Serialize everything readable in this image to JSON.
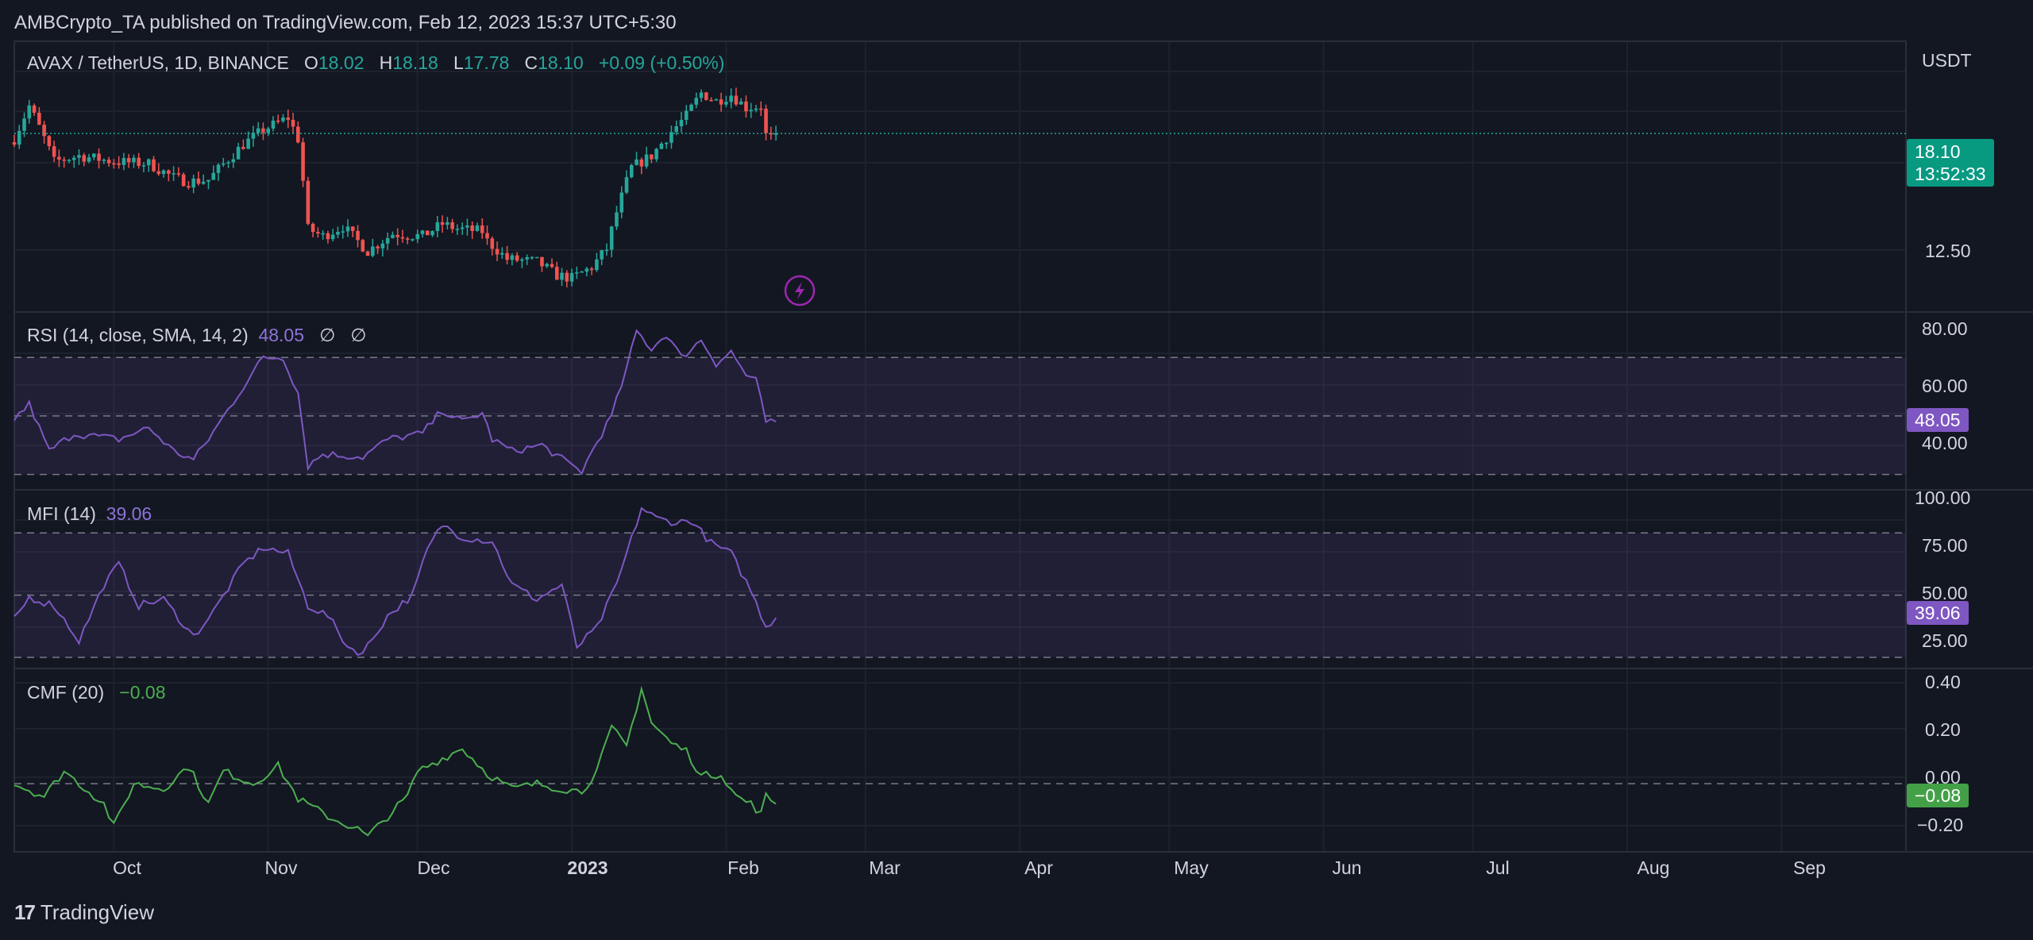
{
  "header": {
    "publisher": "AMBCrypto_TA published on TradingView.com, Feb 12, 2023 15:37 UTC+5:30"
  },
  "price_pane": {
    "symbol": "AVAX / TetherUS, 1D, BINANCE",
    "o_label": "O",
    "o": "18.02",
    "h_label": "H",
    "h": "18.18",
    "l_label": "L",
    "l": "17.78",
    "c_label": "C",
    "c": "18.10",
    "change": "+0.09 (+0.50%)",
    "currency": "USDT",
    "last_price": "18.10",
    "countdown": "13:52:33",
    "axis_tick": "12.50"
  },
  "rsi_pane": {
    "title": "RSI (14, close, SMA, 14, 2)",
    "value": "48.05",
    "icons": [
      "∅",
      "∅"
    ],
    "ticks": [
      "80.00",
      "60.00",
      "40.00"
    ],
    "badge": "48.05"
  },
  "mfi_pane": {
    "title": "MFI (14)",
    "value": "39.06",
    "ticks": [
      "100.00",
      "75.00",
      "50.00",
      "25.00"
    ],
    "badge": "39.06"
  },
  "cmf_pane": {
    "title": "CMF (20)",
    "value": "−0.08",
    "ticks": [
      "0.40",
      "0.20",
      "0.00",
      "−0.20"
    ],
    "badge": "−0.08"
  },
  "x_axis": {
    "labels": [
      "Oct",
      "Nov",
      "Dec",
      "2023",
      "Feb",
      "Mar",
      "Apr",
      "May",
      "Jun",
      "Jul",
      "Aug",
      "Sep"
    ]
  },
  "footer": {
    "brand": "TradingView",
    "logo": "17"
  },
  "colors": {
    "background": "#131722",
    "up": "#26a69a",
    "down": "#ef5350",
    "rsi": "#7e57c2",
    "cmf": "#4caf50",
    "badge_price": "#089981"
  },
  "chart_data": [
    {
      "type": "candlestick",
      "title": "AVAX / TetherUS, 1D, BINANCE",
      "x_range": [
        "2022-09-11",
        "2023-09-26"
      ],
      "ylim": [
        10.48,
        24.03
      ],
      "y_scale": "log",
      "last_close": 18.1,
      "close_anchors": [
        {
          "date": "2022-09-11",
          "close": 17.8
        },
        {
          "date": "2022-09-14",
          "close": 19.7
        },
        {
          "date": "2022-09-19",
          "close": 16.6
        },
        {
          "date": "2022-09-24",
          "close": 16.9
        },
        {
          "date": "2022-10-01",
          "close": 16.6
        },
        {
          "date": "2022-10-08",
          "close": 16.5
        },
        {
          "date": "2022-10-13",
          "close": 15.8
        },
        {
          "date": "2022-10-16",
          "close": 15.6
        },
        {
          "date": "2022-10-20",
          "close": 15.7
        },
        {
          "date": "2022-10-27",
          "close": 17.5
        },
        {
          "date": "2022-10-31",
          "close": 18.3
        },
        {
          "date": "2022-11-05",
          "close": 19.0
        },
        {
          "date": "2022-11-07",
          "close": 17.8
        },
        {
          "date": "2022-11-09",
          "close": 13.5
        },
        {
          "date": "2022-11-12",
          "close": 13.2
        },
        {
          "date": "2022-11-16",
          "close": 13.6
        },
        {
          "date": "2022-11-21",
          "close": 12.6
        },
        {
          "date": "2022-11-26",
          "close": 13.3
        },
        {
          "date": "2022-12-02",
          "close": 13.2
        },
        {
          "date": "2022-12-06",
          "close": 13.7
        },
        {
          "date": "2022-12-09",
          "close": 13.5
        },
        {
          "date": "2022-12-14",
          "close": 13.4
        },
        {
          "date": "2022-12-15",
          "close": 13.0
        },
        {
          "date": "2022-12-19",
          "close": 12.3
        },
        {
          "date": "2022-12-25",
          "close": 12.2
        },
        {
          "date": "2022-12-29",
          "close": 11.7
        },
        {
          "date": "2023-01-01",
          "close": 11.6
        },
        {
          "date": "2023-01-05",
          "close": 12.0
        },
        {
          "date": "2023-01-08",
          "close": 12.7
        },
        {
          "date": "2023-01-10",
          "close": 14.2
        },
        {
          "date": "2023-01-13",
          "close": 16.3
        },
        {
          "date": "2023-01-17",
          "close": 16.9
        },
        {
          "date": "2023-01-21",
          "close": 18.2
        },
        {
          "date": "2023-01-24",
          "close": 19.1
        },
        {
          "date": "2023-01-27",
          "close": 20.5
        },
        {
          "date": "2023-01-30",
          "close": 20.0
        },
        {
          "date": "2023-02-02",
          "close": 20.4
        },
        {
          "date": "2023-02-05",
          "close": 19.6
        },
        {
          "date": "2023-02-08",
          "close": 19.7
        },
        {
          "date": "2023-02-09",
          "close": 18.0
        },
        {
          "date": "2023-02-10",
          "close": 17.9
        },
        {
          "date": "2023-02-11",
          "close": 18.1
        }
      ]
    },
    {
      "type": "line",
      "title": "RSI (14, close, SMA, 14, 2)",
      "ylim": [
        25,
        85
      ],
      "bands": {
        "upper": 70,
        "middle": 50,
        "lower": 30
      },
      "last": 48.05,
      "anchors": [
        {
          "date": "2022-09-11",
          "value": 49
        },
        {
          "date": "2022-09-14",
          "value": 54
        },
        {
          "date": "2022-09-18",
          "value": 38
        },
        {
          "date": "2022-09-23",
          "value": 44
        },
        {
          "date": "2022-10-02",
          "value": 42
        },
        {
          "date": "2022-10-08",
          "value": 46
        },
        {
          "date": "2022-10-13",
          "value": 38
        },
        {
          "date": "2022-10-17",
          "value": 35
        },
        {
          "date": "2022-10-20",
          "value": 42
        },
        {
          "date": "2022-10-27",
          "value": 60
        },
        {
          "date": "2022-10-31",
          "value": 70
        },
        {
          "date": "2022-11-04",
          "value": 70
        },
        {
          "date": "2022-11-07",
          "value": 58
        },
        {
          "date": "2022-11-09",
          "value": 33
        },
        {
          "date": "2022-11-12",
          "value": 37
        },
        {
          "date": "2022-11-20",
          "value": 36
        },
        {
          "date": "2022-11-25",
          "value": 42
        },
        {
          "date": "2022-12-02",
          "value": 44
        },
        {
          "date": "2022-12-06",
          "value": 52
        },
        {
          "date": "2022-12-10",
          "value": 48
        },
        {
          "date": "2022-12-14",
          "value": 51
        },
        {
          "date": "2022-12-16",
          "value": 42
        },
        {
          "date": "2022-12-20",
          "value": 38
        },
        {
          "date": "2022-12-26",
          "value": 40
        },
        {
          "date": "2022-12-31",
          "value": 34
        },
        {
          "date": "2023-01-03",
          "value": 31
        },
        {
          "date": "2023-01-06",
          "value": 41
        },
        {
          "date": "2023-01-09",
          "value": 50
        },
        {
          "date": "2023-01-12",
          "value": 66
        },
        {
          "date": "2023-01-14",
          "value": 79
        },
        {
          "date": "2023-01-17",
          "value": 73
        },
        {
          "date": "2023-01-20",
          "value": 78
        },
        {
          "date": "2023-01-23",
          "value": 70
        },
        {
          "date": "2023-01-27",
          "value": 76
        },
        {
          "date": "2023-01-30",
          "value": 68
        },
        {
          "date": "2023-02-02",
          "value": 72
        },
        {
          "date": "2023-02-05",
          "value": 64
        },
        {
          "date": "2023-02-07",
          "value": 62
        },
        {
          "date": "2023-02-09",
          "value": 48
        },
        {
          "date": "2023-02-11",
          "value": 48.05
        }
      ]
    },
    {
      "type": "line",
      "title": "MFI (14)",
      "ylim": [
        15,
        100
      ],
      "bands": {
        "upper": 80,
        "middle": 50,
        "lower": 20
      },
      "last": 39.06,
      "anchors": [
        {
          "date": "2022-09-11",
          "value": 38
        },
        {
          "date": "2022-09-14",
          "value": 49
        },
        {
          "date": "2022-09-19",
          "value": 45
        },
        {
          "date": "2022-09-24",
          "value": 28
        },
        {
          "date": "2022-09-29",
          "value": 55
        },
        {
          "date": "2022-10-02",
          "value": 65
        },
        {
          "date": "2022-10-06",
          "value": 45
        },
        {
          "date": "2022-10-11",
          "value": 48
        },
        {
          "date": "2022-10-17",
          "value": 30
        },
        {
          "date": "2022-10-21",
          "value": 42
        },
        {
          "date": "2022-10-27",
          "value": 65
        },
        {
          "date": "2022-10-31",
          "value": 73
        },
        {
          "date": "2022-11-05",
          "value": 70
        },
        {
          "date": "2022-11-09",
          "value": 45
        },
        {
          "date": "2022-11-13",
          "value": 40
        },
        {
          "date": "2022-11-17",
          "value": 25
        },
        {
          "date": "2022-11-20",
          "value": 22
        },
        {
          "date": "2022-11-25",
          "value": 40
        },
        {
          "date": "2022-11-30",
          "value": 50
        },
        {
          "date": "2022-12-03",
          "value": 72
        },
        {
          "date": "2022-12-06",
          "value": 84
        },
        {
          "date": "2022-12-10",
          "value": 78
        },
        {
          "date": "2022-12-16",
          "value": 76
        },
        {
          "date": "2022-12-20",
          "value": 55
        },
        {
          "date": "2022-12-25",
          "value": 48
        },
        {
          "date": "2022-12-30",
          "value": 55
        },
        {
          "date": "2023-01-02",
          "value": 25
        },
        {
          "date": "2023-01-06",
          "value": 34
        },
        {
          "date": "2023-01-10",
          "value": 55
        },
        {
          "date": "2023-01-15",
          "value": 92
        },
        {
          "date": "2023-01-18",
          "value": 87
        },
        {
          "date": "2023-01-22",
          "value": 85
        },
        {
          "date": "2023-01-25",
          "value": 86
        },
        {
          "date": "2023-01-29",
          "value": 75
        },
        {
          "date": "2023-02-02",
          "value": 70
        },
        {
          "date": "2023-02-06",
          "value": 52
        },
        {
          "date": "2023-02-09",
          "value": 35
        },
        {
          "date": "2023-02-11",
          "value": 39.06
        }
      ]
    },
    {
      "type": "line",
      "title": "CMF (20)",
      "ylim": [
        -0.27,
        0.45
      ],
      "zero_line": 0.0,
      "last": -0.08,
      "anchors": [
        {
          "date": "2022-09-11",
          "value": 0.0
        },
        {
          "date": "2022-09-17",
          "value": -0.05
        },
        {
          "date": "2022-09-21",
          "value": 0.05
        },
        {
          "date": "2022-09-29",
          "value": -0.08
        },
        {
          "date": "2022-10-01",
          "value": -0.17
        },
        {
          "date": "2022-10-05",
          "value": 0.0
        },
        {
          "date": "2022-10-11",
          "value": -0.02
        },
        {
          "date": "2022-10-16",
          "value": 0.07
        },
        {
          "date": "2022-10-20",
          "value": -0.08
        },
        {
          "date": "2022-10-23",
          "value": 0.05
        },
        {
          "date": "2022-10-29",
          "value": 0.0
        },
        {
          "date": "2022-11-03",
          "value": 0.07
        },
        {
          "date": "2022-11-07",
          "value": -0.06
        },
        {
          "date": "2022-11-14",
          "value": -0.14
        },
        {
          "date": "2022-11-19",
          "value": -0.18
        },
        {
          "date": "2022-11-21",
          "value": -0.21
        },
        {
          "date": "2022-11-25",
          "value": -0.13
        },
        {
          "date": "2022-11-29",
          "value": -0.05
        },
        {
          "date": "2022-12-01",
          "value": 0.05
        },
        {
          "date": "2022-12-06",
          "value": 0.1
        },
        {
          "date": "2022-12-10",
          "value": 0.14
        },
        {
          "date": "2022-12-15",
          "value": 0.04
        },
        {
          "date": "2022-12-20",
          "value": -0.02
        },
        {
          "date": "2022-12-25",
          "value": 0.0
        },
        {
          "date": "2022-12-30",
          "value": -0.02
        },
        {
          "date": "2023-01-03",
          "value": -0.03
        },
        {
          "date": "2023-01-06",
          "value": 0.05
        },
        {
          "date": "2023-01-09",
          "value": 0.22
        },
        {
          "date": "2023-01-12",
          "value": 0.15
        },
        {
          "date": "2023-01-15",
          "value": 0.38
        },
        {
          "date": "2023-01-17",
          "value": 0.24
        },
        {
          "date": "2023-01-21",
          "value": 0.16
        },
        {
          "date": "2023-01-24",
          "value": 0.13
        },
        {
          "date": "2023-01-27",
          "value": 0.03
        },
        {
          "date": "2023-01-31",
          "value": 0.04
        },
        {
          "date": "2023-02-03",
          "value": -0.05
        },
        {
          "date": "2023-02-06",
          "value": -0.08
        },
        {
          "date": "2023-02-08",
          "value": -0.12
        },
        {
          "date": "2023-02-09",
          "value": -0.05
        },
        {
          "date": "2023-02-11",
          "value": -0.08
        }
      ]
    }
  ]
}
